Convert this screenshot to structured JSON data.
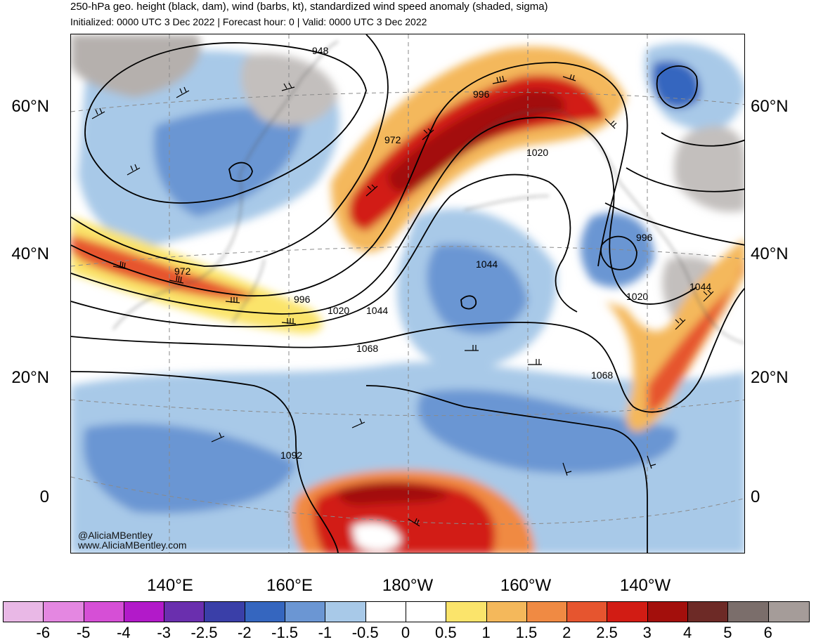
{
  "header": {
    "title": "250-hPa geo. height (black, dam), wind (barbs, kt), standardized wind speed anomaly (shaded, sigma)",
    "subtitle": "Initialized: 0000 UTC 3 Dec 2022 | Forecast hour: 0 | Valid: 0000 UTC 3 Dec 2022"
  },
  "map": {
    "lat_labels": [
      "60°N",
      "40°N",
      "20°N",
      "0"
    ],
    "lon_labels": [
      "140°E",
      "160°E",
      "180°W",
      "160°W",
      "140°W"
    ],
    "contour_labels": [
      "948",
      "996",
      "972",
      "1020",
      "972",
      "996",
      "1020",
      "1044",
      "1068",
      "1092",
      "1044",
      "996",
      "1020",
      "1044",
      "1068"
    ],
    "credits": {
      "handle": "@AliciaMBentley",
      "website": "www.AliciaMBentley.com"
    }
  },
  "colorbar": {
    "ticks": [
      "-6",
      "-5",
      "-4",
      "-3",
      "-2.5",
      "-2",
      "-1.5",
      "-1",
      "-0.5",
      "0",
      "0.5",
      "1",
      "1.5",
      "2",
      "2.5",
      "3",
      "4",
      "5",
      "6"
    ],
    "colors": [
      "#e9b8e6",
      "#e487e1",
      "#d64fd6",
      "#b21ac9",
      "#6a2fae",
      "#3a3fa8",
      "#3566bf",
      "#6b96d3",
      "#a8c9e8",
      "#ffffff",
      "#ffffff",
      "#fbe46b",
      "#f4b85b",
      "#f08a43",
      "#e6552f",
      "#d21c14",
      "#a30f0c",
      "#6d2a26",
      "#7b6e6b",
      "#a59c99"
    ]
  }
}
